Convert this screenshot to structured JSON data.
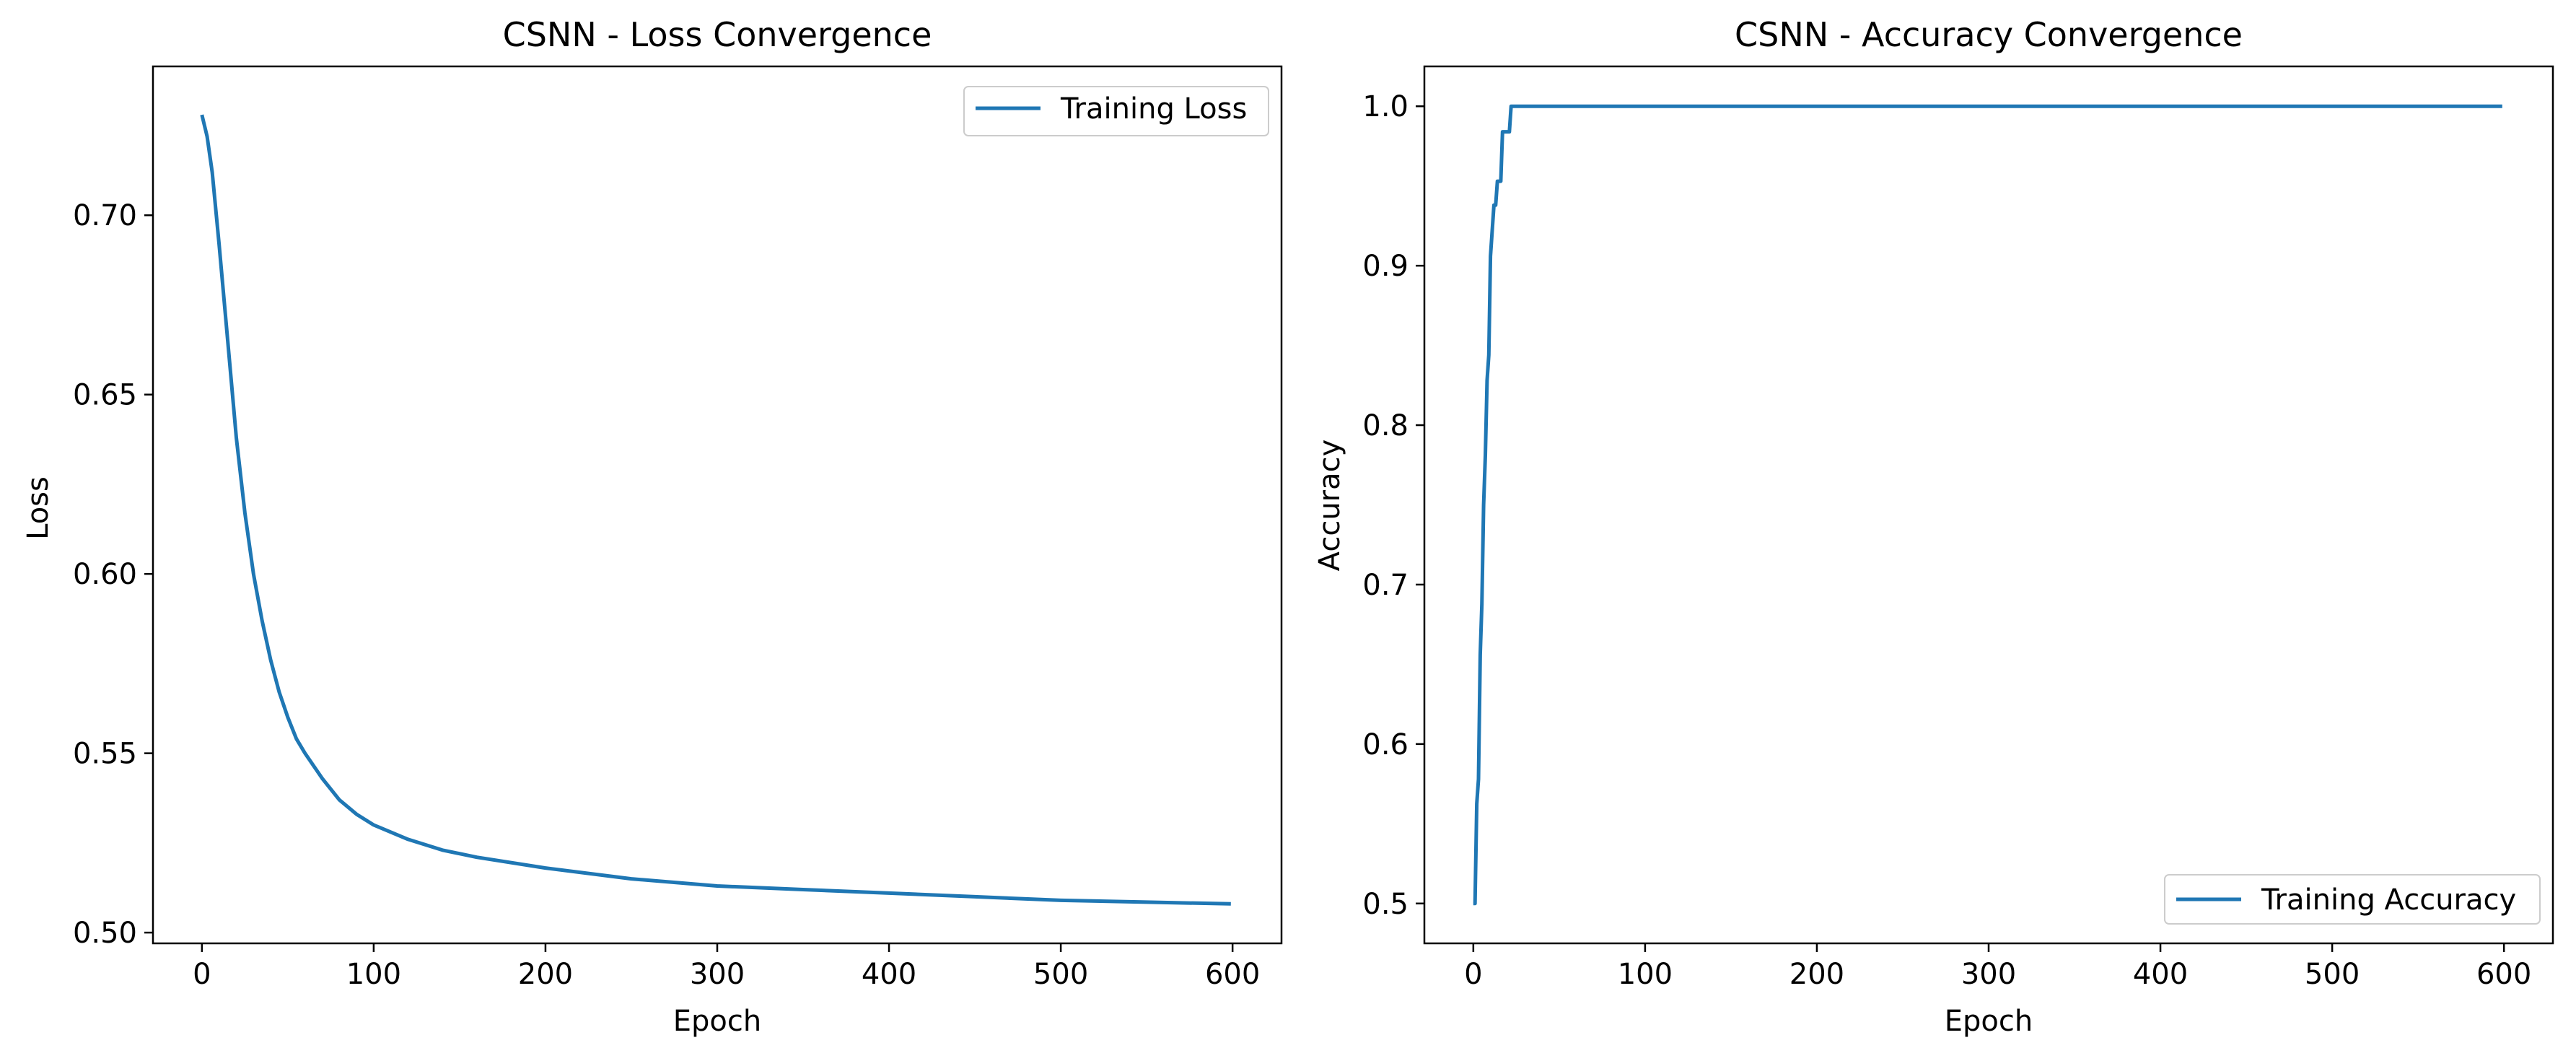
{
  "colors": {
    "line": "#1f77b4",
    "axes": "#000000",
    "background": "#ffffff"
  },
  "chart_data": [
    {
      "type": "line",
      "title": "CSNN - Loss Convergence",
      "xlabel": "Epoch",
      "ylabel": "Loss",
      "xlim": [
        -28.5,
        628.5
      ],
      "ylim": [
        0.497,
        0.7415
      ],
      "xticks": [
        0,
        100,
        200,
        300,
        400,
        500,
        600
      ],
      "yticks": [
        0.5,
        0.55,
        0.6,
        0.65,
        0.7
      ],
      "ytick_labels": [
        "0.50",
        "0.55",
        "0.60",
        "0.65",
        "0.70"
      ],
      "grid": false,
      "legend": {
        "position": "top-right",
        "entries": [
          "Training Loss"
        ]
      },
      "series": [
        {
          "name": "Training Loss",
          "x": [
            0,
            3,
            6,
            10,
            15,
            20,
            25,
            30,
            35,
            40,
            45,
            50,
            55,
            60,
            70,
            80,
            90,
            100,
            120,
            140,
            160,
            200,
            250,
            300,
            350,
            400,
            450,
            500,
            550,
            599
          ],
          "y": [
            0.728,
            0.722,
            0.712,
            0.692,
            0.665,
            0.638,
            0.617,
            0.6,
            0.587,
            0.576,
            0.567,
            0.56,
            0.554,
            0.55,
            0.543,
            0.537,
            0.533,
            0.53,
            0.526,
            0.523,
            0.521,
            0.518,
            0.515,
            0.513,
            0.512,
            0.511,
            0.51,
            0.509,
            0.5085,
            0.508
          ]
        }
      ]
    },
    {
      "type": "line",
      "title": "CSNN - Accuracy Convergence",
      "xlabel": "Epoch",
      "ylabel": "Accuracy",
      "xlim": [
        -28.5,
        628.5
      ],
      "ylim": [
        0.475,
        1.025
      ],
      "xticks": [
        0,
        100,
        200,
        300,
        400,
        500,
        600
      ],
      "yticks": [
        0.5,
        0.6,
        0.7,
        0.8,
        0.9,
        1.0
      ],
      "ytick_labels": [
        "0.5",
        "0.6",
        "0.7",
        "0.8",
        "0.9",
        "1.0"
      ],
      "grid": false,
      "legend": {
        "position": "bottom-right",
        "entries": [
          "Training Accuracy"
        ]
      },
      "series": [
        {
          "name": "Training Accuracy",
          "x": [
            0,
            1,
            2,
            3,
            4,
            5,
            6,
            7,
            8,
            9,
            10,
            11,
            12,
            13,
            14,
            15,
            16,
            17,
            18,
            19,
            20,
            21,
            22,
            23,
            24,
            25,
            599
          ],
          "y": [
            0.5,
            0.5,
            0.5625,
            0.578,
            0.656,
            0.688,
            0.75,
            0.781,
            0.828,
            0.844,
            0.906,
            0.922,
            0.938,
            0.938,
            0.953,
            0.953,
            0.953,
            0.984,
            0.984,
            0.984,
            0.984,
            0.984,
            1.0,
            1.0,
            1.0,
            1.0,
            1.0
          ]
        }
      ]
    }
  ]
}
